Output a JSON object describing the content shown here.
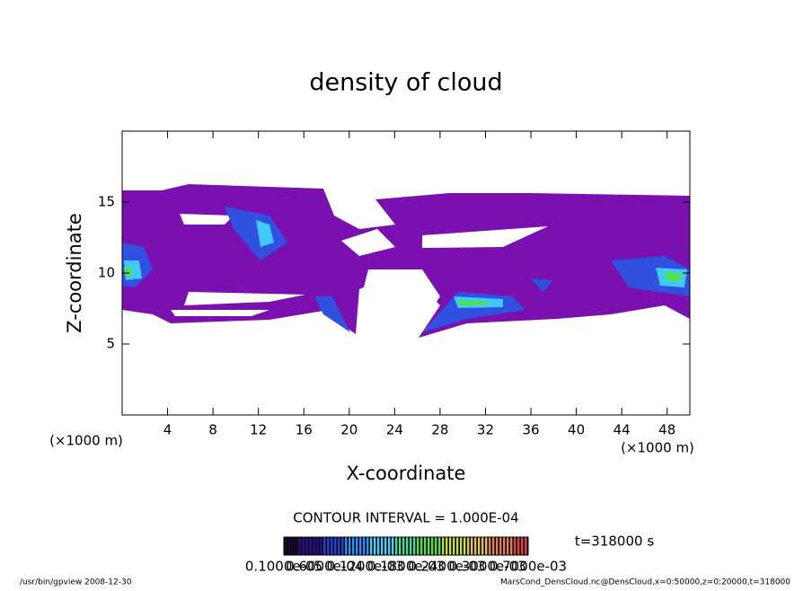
{
  "chart_data": {
    "type": "contour",
    "title": "density of cloud",
    "x_label": "X-coordinate",
    "y_label": "Z-coordinate",
    "x_unit": "(×1000 m)",
    "y_unit": "(×1000 m)",
    "xlim": [
      0,
      50
    ],
    "ylim": [
      0,
      20
    ],
    "xticks": [
      4,
      8,
      12,
      16,
      20,
      24,
      28,
      32,
      36,
      40,
      44,
      48
    ],
    "yticks": [
      5,
      10,
      15
    ],
    "contour_interval": "CONTOUR INTERVAL = 1.000E-04",
    "time_label": "t=318000 s",
    "colorbar_labels": [
      "0.1000e-05",
      "0.6000e-04",
      "0.1200e-03",
      "0.1800e-03",
      "0.2400e-03",
      "0.3000e-03",
      "0.7000e-03"
    ],
    "colormap": [
      "#1a0033",
      "#2a0a8a",
      "#1f3fd0",
      "#2a90ff",
      "#40d0ff",
      "#40e0a0",
      "#50e050",
      "#c0e040",
      "#e0c060",
      "#e08050",
      "#e04040"
    ],
    "footer_left": "/usr/bin/gpview   2008-12-30",
    "footer_right": "MarsCond_DensCloud.nc@DensCloud,x=0:50000,z=0:20000,t=318000"
  }
}
